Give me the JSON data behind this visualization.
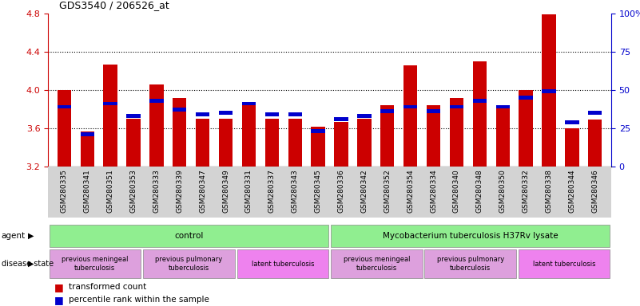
{
  "title": "GDS3540 / 206526_at",
  "samples": [
    "GSM280335",
    "GSM280341",
    "GSM280351",
    "GSM280353",
    "GSM280333",
    "GSM280339",
    "GSM280347",
    "GSM280349",
    "GSM280331",
    "GSM280337",
    "GSM280343",
    "GSM280345",
    "GSM280336",
    "GSM280342",
    "GSM280352",
    "GSM280354",
    "GSM280334",
    "GSM280340",
    "GSM280348",
    "GSM280350",
    "GSM280332",
    "GSM280338",
    "GSM280344",
    "GSM280346"
  ],
  "transformed_count": [
    4.0,
    3.57,
    4.27,
    3.7,
    4.06,
    3.92,
    3.7,
    3.7,
    3.86,
    3.7,
    3.7,
    3.62,
    3.67,
    3.7,
    3.84,
    4.26,
    3.84,
    3.92,
    4.3,
    3.84,
    4.0,
    4.79,
    3.6,
    3.69
  ],
  "percentile_rank": [
    38,
    20,
    40,
    32,
    42,
    36,
    33,
    34,
    40,
    33,
    33,
    22,
    30,
    32,
    35,
    38,
    35,
    38,
    42,
    38,
    44,
    48,
    28,
    34
  ],
  "bar_color": "#cc0000",
  "percentile_color": "#0000cc",
  "ymin": 3.2,
  "ymax": 4.8,
  "yticks": [
    3.2,
    3.6,
    4.0,
    4.4,
    4.8
  ],
  "ytick_labels_left": [
    "3.2",
    "3.6",
    "4.0",
    "4.4",
    "4.8"
  ],
  "ytick_labels_right": [
    "0",
    "25",
    "50",
    "75",
    "100%"
  ],
  "grid_yticks": [
    3.6,
    4.0,
    4.4
  ],
  "agent_groups": [
    {
      "label": "control",
      "start": 0,
      "end": 11,
      "color": "#90ee90"
    },
    {
      "label": "Mycobacterium tuberculosis H37Rv lysate",
      "start": 12,
      "end": 23,
      "color": "#90ee90"
    }
  ],
  "disease_groups": [
    {
      "label": "previous meningeal\ntuberculosis",
      "start": 0,
      "end": 3,
      "color": "#dda0dd"
    },
    {
      "label": "previous pulmonary\ntuberculosis",
      "start": 4,
      "end": 7,
      "color": "#dda0dd"
    },
    {
      "label": "latent tuberculosis",
      "start": 8,
      "end": 11,
      "color": "#ee82ee"
    },
    {
      "label": "previous meningeal\ntuberculosis",
      "start": 12,
      "end": 15,
      "color": "#dda0dd"
    },
    {
      "label": "previous pulmonary\ntuberculosis",
      "start": 16,
      "end": 19,
      "color": "#dda0dd"
    },
    {
      "label": "latent tuberculosis",
      "start": 20,
      "end": 23,
      "color": "#ee82ee"
    }
  ],
  "bg_color": "#ffffff",
  "left_label_color": "#cc0000",
  "right_label_color": "#0000cc",
  "bar_width": 0.6,
  "fig_width": 8.01,
  "fig_height": 3.84,
  "dpi": 100
}
